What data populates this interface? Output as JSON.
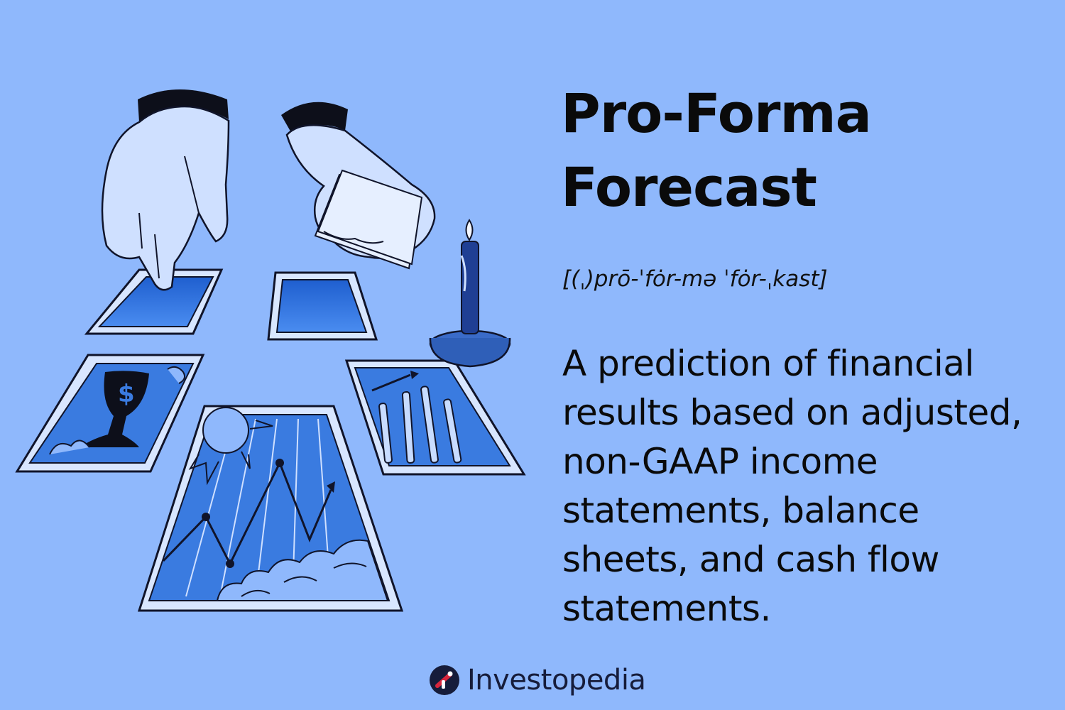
{
  "heading": {
    "line1": "Pro-Forma",
    "line2": "Forecast"
  },
  "pronunciation": "[(ˌ)prō-ˈfȯr-mə ˈfȯr-ˌkast]",
  "definition": {
    "lines": [
      "A prediction of financial",
      "results based on adjusted,",
      "non-GAAP income",
      "statements, balance",
      "sheets, and cash flow",
      "statements."
    ]
  },
  "brand": {
    "name": "Investopedia",
    "logo_icon": "investopedia-logo-icon",
    "color": "#161c3a"
  },
  "illustration": {
    "icons": [
      "hand-pointing-icon",
      "hand-holding-cards-icon",
      "tarot-card-icon",
      "chalice-dollar-icon",
      "sun-icon",
      "zigzag-trend-arrow-icon",
      "cloud-icon",
      "candle-icon",
      "wands-icon"
    ],
    "card_fill_color": "#3a7be0",
    "card_border_color": "#d8e6ff",
    "outline_color": "#10142a"
  }
}
